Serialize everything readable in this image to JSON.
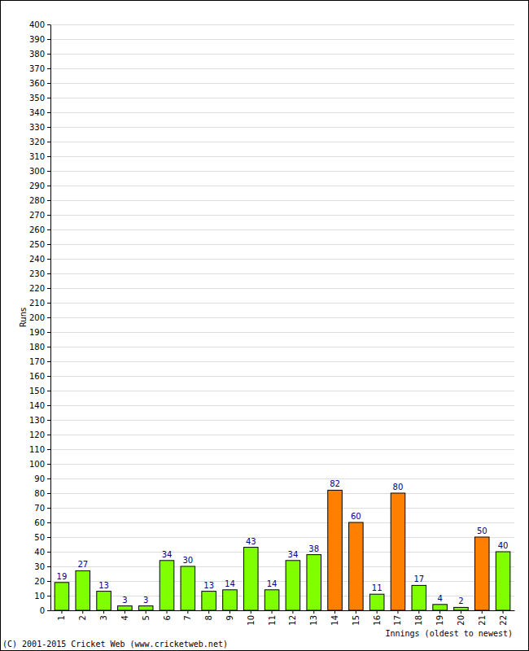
{
  "chart_data": {
    "type": "bar",
    "categories": [
      "1",
      "2",
      "3",
      "4",
      "5",
      "6",
      "7",
      "8",
      "9",
      "10",
      "11",
      "12",
      "13",
      "14",
      "15",
      "16",
      "17",
      "18",
      "19",
      "20",
      "21",
      "22"
    ],
    "values": [
      19,
      27,
      13,
      3,
      3,
      34,
      30,
      13,
      14,
      43,
      14,
      34,
      38,
      82,
      60,
      11,
      80,
      17,
      4,
      2,
      50,
      40
    ],
    "colors": [
      "#80ff00",
      "#80ff00",
      "#80ff00",
      "#80ff00",
      "#80ff00",
      "#80ff00",
      "#80ff00",
      "#80ff00",
      "#80ff00",
      "#80ff00",
      "#80ff00",
      "#80ff00",
      "#80ff00",
      "#ff8000",
      "#ff8000",
      "#80ff00",
      "#ff8000",
      "#80ff00",
      "#80ff00",
      "#80ff00",
      "#ff8000",
      "#80ff00"
    ],
    "ylim": [
      0,
      400
    ],
    "yticks": [
      0,
      10,
      20,
      30,
      40,
      50,
      60,
      70,
      80,
      90,
      100,
      110,
      120,
      130,
      140,
      150,
      160,
      170,
      180,
      190,
      200,
      210,
      220,
      230,
      240,
      250,
      260,
      270,
      280,
      290,
      300,
      310,
      320,
      330,
      340,
      350,
      360,
      370,
      380,
      390,
      400
    ],
    "grid": true,
    "data_labels": true,
    "x_label": "Innings (oldest to newest)",
    "y_label": "Runs",
    "annotations": [
      "(C) 2001-2015 Cricket Web (www.cricketweb.net)"
    ]
  }
}
